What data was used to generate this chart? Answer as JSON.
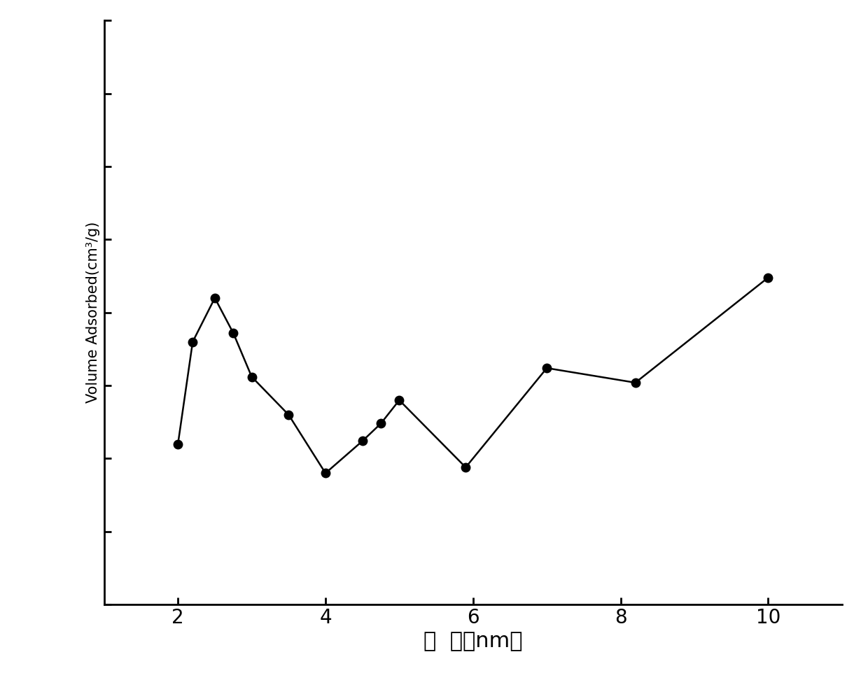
{
  "x": [
    2.0,
    2.2,
    2.5,
    2.75,
    3.0,
    3.5,
    4.0,
    4.5,
    4.75,
    5.0,
    5.9,
    7.0,
    8.2,
    10.0
  ],
  "y": [
    0.055,
    0.09,
    0.105,
    0.093,
    0.078,
    0.065,
    0.045,
    0.056,
    0.062,
    0.07,
    0.047,
    0.081,
    0.076,
    0.112
  ],
  "xlabel": "孔  径（nm）",
  "ylabel": "Volume Adsorbed(cm³/g)",
  "xlim": [
    1.0,
    11.0
  ],
  "ylim": [
    0.0,
    0.2
  ],
  "xticks": [
    2,
    4,
    6,
    8,
    10
  ],
  "line_color": "#000000",
  "marker": "o",
  "marker_size": 9,
  "linewidth": 1.8,
  "background_color": "#ffffff",
  "xlabel_fontsize": 22,
  "ylabel_fontsize": 15,
  "tick_fontsize": 20
}
